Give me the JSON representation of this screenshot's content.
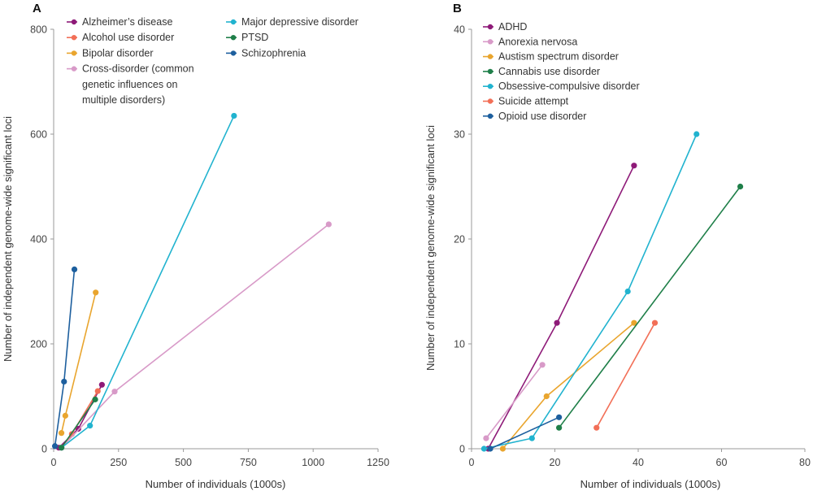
{
  "chart_data": [
    {
      "panel": "A",
      "type": "line",
      "xlabel": "Number of individuals (1000s)",
      "ylabel": "Number of independent genome-wide significant loci",
      "xlim": [
        0,
        1250
      ],
      "ylim": [
        0,
        800
      ],
      "xticks": [
        "0",
        "250",
        "500",
        "750",
        "1000",
        "1250"
      ],
      "xtick_values": [
        0,
        250,
        500,
        750,
        1000,
        1250
      ],
      "yticks": [
        "0",
        "200",
        "400",
        "600",
        "800"
      ],
      "ytick_values": [
        0,
        200,
        400,
        600,
        800
      ],
      "legend_columns": [
        [
          {
            "name": "Alzheimer’s disease",
            "lines": [
              "Alzheimer’s disease"
            ]
          },
          {
            "name": "Alcohol use disorder",
            "lines": [
              "Alcohol use disorder"
            ]
          },
          {
            "name": "Bipolar disorder",
            "lines": [
              "Bipolar disorder"
            ]
          },
          {
            "name": "Cross-disorder (common genetic influences on multiple disorders)",
            "lines": [
              "Cross-disorder (common",
              "genetic influences on",
              "multiple disorders)"
            ]
          }
        ],
        [
          {
            "name": "Major depressive disorder",
            "lines": [
              "Major depressive disorder"
            ]
          },
          {
            "name": "PTSD",
            "lines": [
              "PTSD"
            ]
          },
          {
            "name": "Schizophrenia",
            "lines": [
              "Schizophrenia"
            ]
          }
        ]
      ],
      "series": [
        {
          "name": "Alzheimer’s disease",
          "color": "#8e1a78",
          "points": [
            [
              20,
              2
            ],
            [
              95,
              38
            ],
            [
              186,
              122
            ]
          ]
        },
        {
          "name": "Alcohol use disorder",
          "color": "#f26f57",
          "points": [
            [
              30,
              2
            ],
            [
              70,
              28
            ],
            [
              170,
              110
            ]
          ]
        },
        {
          "name": "Bipolar disorder",
          "color": "#e9a52e",
          "points": [
            [
              30,
              30
            ],
            [
              45,
              63
            ],
            [
              162,
              298
            ]
          ]
        },
        {
          "name": "Cross-disorder (common genetic influences on multiple disorders)",
          "color": "#d89ac8",
          "points": [
            [
              30,
              2
            ],
            [
              235,
              109
            ],
            [
              1060,
              428
            ]
          ]
        },
        {
          "name": "Major depressive disorder",
          "color": "#21b3cf",
          "points": [
            [
              30,
              2
            ],
            [
              140,
              44
            ],
            [
              695,
              635
            ]
          ]
        },
        {
          "name": "PTSD",
          "color": "#1f7f49",
          "points": [
            [
              30,
              2
            ],
            [
              160,
              94
            ]
          ]
        },
        {
          "name": "Schizophrenia",
          "color": "#1d5f9e",
          "points": [
            [
              5,
              5
            ],
            [
              40,
              128
            ],
            [
              80,
              342
            ]
          ]
        }
      ]
    },
    {
      "panel": "B",
      "type": "line",
      "xlabel": "Number of individuals (1000s)",
      "ylabel": "Number of independent genome-wide significant loci",
      "xlim": [
        0,
        80
      ],
      "ylim": [
        0,
        40
      ],
      "xticks": [
        "0",
        "20",
        "40",
        "60",
        "80"
      ],
      "xtick_values": [
        0,
        20,
        40,
        60,
        80
      ],
      "yticks": [
        "0",
        "10",
        "20",
        "30",
        "40"
      ],
      "ytick_values": [
        0,
        10,
        20,
        30,
        40
      ],
      "legend_columns": [
        [
          {
            "name": "ADHD",
            "lines": [
              "ADHD"
            ]
          },
          {
            "name": "Anorexia nervosa",
            "lines": [
              "Anorexia nervosa"
            ]
          },
          {
            "name": "Austism spectrum disorder",
            "lines": [
              "Austism spectrum disorder"
            ]
          },
          {
            "name": "Cannabis use disorder",
            "lines": [
              "Cannabis use disorder"
            ]
          },
          {
            "name": "Obsessive-compulsive disorder",
            "lines": [
              "Obsessive-compulsive disorder"
            ]
          },
          {
            "name": "Suicide attempt",
            "lines": [
              "Suicide attempt"
            ]
          },
          {
            "name": "Opioid use disorder",
            "lines": [
              "Opioid use disorder"
            ]
          }
        ]
      ],
      "series": [
        {
          "name": "ADHD",
          "color": "#8e1a78",
          "points": [
            [
              4,
              0
            ],
            [
              20.5,
              12
            ],
            [
              39,
              27
            ]
          ]
        },
        {
          "name": "Anorexia nervosa",
          "color": "#d89ac8",
          "points": [
            [
              3.5,
              1
            ],
            [
              17,
              8
            ]
          ]
        },
        {
          "name": "Austism spectrum disorder",
          "color": "#e9a52e",
          "points": [
            [
              7.5,
              0
            ],
            [
              18,
              5
            ],
            [
              39,
              12
            ]
          ]
        },
        {
          "name": "Cannabis use disorder",
          "color": "#1f7f49",
          "points": [
            [
              21,
              2
            ],
            [
              64.5,
              25
            ]
          ]
        },
        {
          "name": "Obsessive-compulsive disorder",
          "color": "#21b3cf",
          "points": [
            [
              3,
              0
            ],
            [
              14.5,
              1
            ],
            [
              37.5,
              15
            ],
            [
              54,
              30
            ]
          ]
        },
        {
          "name": "Suicide attempt",
          "color": "#f26f57",
          "points": [
            [
              30,
              2
            ],
            [
              44,
              12
            ]
          ]
        },
        {
          "name": "Opioid use disorder",
          "color": "#1d5f9e",
          "points": [
            [
              4.5,
              0
            ],
            [
              21,
              3
            ]
          ]
        }
      ]
    }
  ]
}
